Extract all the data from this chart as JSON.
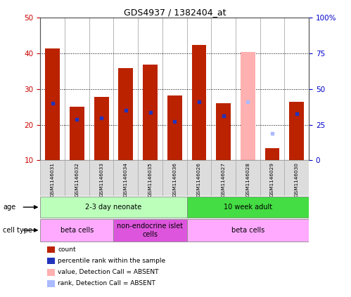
{
  "title": "GDS4937 / 1382404_at",
  "samples": [
    "GSM1146031",
    "GSM1146032",
    "GSM1146033",
    "GSM1146034",
    "GSM1146035",
    "GSM1146036",
    "GSM1146026",
    "GSM1146027",
    "GSM1146028",
    "GSM1146029",
    "GSM1146030"
  ],
  "red_values": [
    41.5,
    25.0,
    27.8,
    35.8,
    36.8,
    28.2,
    42.3,
    26.0,
    0.0,
    13.5,
    26.5
  ],
  "pink_values": [
    0.0,
    0.0,
    0.0,
    0.0,
    0.0,
    0.0,
    0.0,
    0.0,
    40.5,
    0.0,
    0.0
  ],
  "blue_y": [
    26.0,
    21.5,
    22.0,
    24.0,
    23.5,
    21.0,
    26.5,
    22.5,
    0.0,
    0.0,
    23.0
  ],
  "light_blue_y": [
    0.0,
    0.0,
    0.0,
    0.0,
    0.0,
    0.0,
    0.0,
    0.0,
    26.5,
    17.5,
    0.0
  ],
  "ylim_left": [
    10,
    50
  ],
  "ylim_right": [
    0,
    100
  ],
  "yticks_left": [
    10,
    20,
    30,
    40,
    50
  ],
  "yticks_right": [
    0,
    25,
    50,
    75,
    100
  ],
  "yticklabels_right": [
    "0",
    "25",
    "50",
    "75",
    "100%"
  ],
  "bar_width": 0.6,
  "red_color": "#bb2200",
  "pink_color": "#ffb0b0",
  "blue_color": "#2233bb",
  "light_blue_color": "#aabbff",
  "age_groups": [
    {
      "label": "2-3 day neonate",
      "start": 0,
      "end": 6,
      "color": "#bbffbb"
    },
    {
      "label": "10 week adult",
      "start": 6,
      "end": 11,
      "color": "#44dd44"
    }
  ],
  "cell_type_groups": [
    {
      "label": "beta cells",
      "start": 0,
      "end": 3,
      "color": "#ffaaff"
    },
    {
      "label": "non-endocrine islet\ncells",
      "start": 3,
      "end": 6,
      "color": "#dd55dd"
    },
    {
      "label": "beta cells",
      "start": 6,
      "end": 11,
      "color": "#ffaaff"
    }
  ],
  "legend_items": [
    {
      "label": "count",
      "color": "#bb2200"
    },
    {
      "label": "percentile rank within the sample",
      "color": "#2233bb"
    },
    {
      "label": "value, Detection Call = ABSENT",
      "color": "#ffb0b0"
    },
    {
      "label": "rank, Detection Call = ABSENT",
      "color": "#aabbff"
    }
  ],
  "ylabel_left_color": "#cc0000",
  "ylabel_right_color": "#0000cc",
  "bg_color": "#ffffff",
  "grid_color": "#000000",
  "sample_box_color": "#dddddd",
  "sample_box_edge": "#aaaaaa"
}
